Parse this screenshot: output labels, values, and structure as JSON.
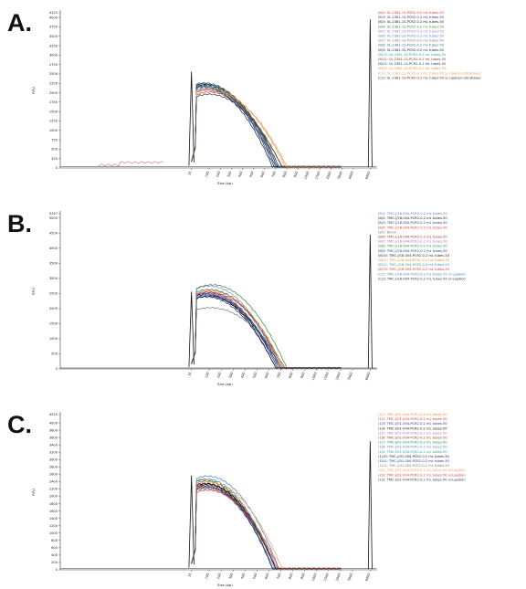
{
  "panels": [
    {
      "letter": "A."
    },
    {
      "letter": "B."
    },
    {
      "letter": "C."
    }
  ],
  "chart_data": [
    {
      "type": "line",
      "panel": "A.",
      "xlabel": "Size (bp)",
      "ylabel": "RFU",
      "ylim": [
        0,
        4125
      ],
      "y_ticks": [
        0,
        250,
        500,
        750,
        1000,
        1250,
        1500,
        1750,
        2000,
        2250,
        2500,
        2750,
        3000,
        3250,
        3500,
        3750,
        4000,
        4125
      ],
      "x_ticks": [
        "35",
        "100",
        "200",
        "300",
        "400",
        "500",
        "600",
        "700",
        "800",
        "900",
        "1000",
        "1500",
        "2000",
        "3000",
        "4000",
        "6000"
      ],
      "grid": false,
      "legend_position": "right",
      "series": [
        {
          "name": "(B)2: 0L-2381-1S-PCR2-0.2 mL tubes-50",
          "color": "#e8312b",
          "peak": 2060,
          "center": 0.47,
          "width": 0.22
        },
        {
          "name": "(B)3: 0L-2381-1S-PCR2-0.2 mL tubes-50",
          "color": "#2c2c9a",
          "peak": 2150,
          "center": 0.455,
          "width": 0.225
        },
        {
          "name": "(B)3: 0L-2381-1S-PCR2-0.2 mL tubes-50",
          "color": "#111111",
          "peak": 2190,
          "center": 0.46,
          "width": 0.23
        },
        {
          "name": "(B)4: 0L-2381-1S-PCR2-0.2 mL tubes-50",
          "color": "#2f8a3f",
          "peak": 2230,
          "center": 0.455,
          "width": 0.23
        },
        {
          "name": "(B)5: 0L-2381-1S-PCR2-0.2 mL tubes-50",
          "color": "#b16cc9",
          "peak": 2040,
          "center": 0.46,
          "width": 0.225
        },
        {
          "name": "(B)6: 0L-2381-1S-PCR2-0.2 mL tubes-50",
          "color": "#4f7fd1",
          "peak": 2090,
          "center": 0.46,
          "width": 0.22
        },
        {
          "name": "(B)7: 0L-2381-1S-PCR2-0.2 mL tubes-50",
          "color": "#7a7a7a",
          "peak": 1990,
          "center": 0.47,
          "width": 0.23
        },
        {
          "name": "(B)8: 0L-2381-1S-PCR2-0.2 mL tubes-50",
          "color": "#3b6d8f",
          "peak": 2210,
          "center": 0.455,
          "width": 0.225
        },
        {
          "name": "(B)9: 0L-2381-1S-PCR2-0.2 mL tubes-50",
          "color": "#1b1b1b",
          "peak": 2130,
          "center": 0.45,
          "width": 0.22
        },
        {
          "name": "(B)10: 0L-2381-1S-PCR2-0.2 mL tubes-50",
          "color": "#26a39b",
          "peak": 2120,
          "center": 0.46,
          "width": 0.23
        },
        {
          "name": "(B)11: 0L-2381-1S-PCR2-0.2 mL tubes-50",
          "color": "#8b3a16",
          "peak": 2170,
          "center": 0.46,
          "width": 0.225
        },
        {
          "name": "(B)12: 0L-2381-1S-PCR2-0.2 mL tubes-50",
          "color": "#0f3f8f",
          "peak": 2200,
          "center": 0.45,
          "width": 0.225
        },
        {
          "name": "(B)13: 0L-2381-1S-PCR2-0.2 mL tubes-50",
          "color": "#f08c2a",
          "peak": 2000,
          "center": 0.48,
          "width": 0.235
        },
        {
          "name": "(C)1: 0L-2381-1S-PCR2-0.2 mL tubes-50 ul-Ligation-UltraPower",
          "color": "#f0a060",
          "peak": 2080,
          "center": 0.47,
          "width": 0.24
        },
        {
          "name": "(C)2: 0L-2381-1S-PCR2-0.2 mL tubes-50 ul-Ligation-UltraPower",
          "color": "#333333",
          "peak": 1930,
          "center": 0.47,
          "width": 0.23
        }
      ]
    },
    {
      "type": "line",
      "panel": "B.",
      "xlabel": "Size (bp)",
      "ylabel": "RFU",
      "ylim": [
        0,
        5147
      ],
      "y_ticks": [
        0,
        500,
        1000,
        1500,
        2000,
        2500,
        3000,
        3500,
        4000,
        4500,
        5000,
        5147
      ],
      "x_ticks": [
        "35",
        "100",
        "200",
        "300",
        "400",
        "500",
        "600",
        "700",
        "800",
        "900",
        "1000",
        "1500",
        "2000",
        "3000",
        "6000"
      ],
      "grid": false,
      "legend_position": "right",
      "series": [
        {
          "name": "(B)1: TMC-J/18-004-PCR2-0.2 mL tubes-50",
          "color": "#4f7fd1",
          "peak": 2420,
          "center": 0.47,
          "width": 0.22
        },
        {
          "name": "(B)2: TMC-J/18-004-PCR2-0.2 mL tubes-50",
          "color": "#111111",
          "peak": 2380,
          "center": 0.465,
          "width": 0.225
        },
        {
          "name": "(B)3: TMC-J/18-004-PCR2-0.2 mL tubes-50",
          "color": "#2c2c9a",
          "peak": 2360,
          "center": 0.46,
          "width": 0.22
        },
        {
          "name": "(B)4: TMC-J/18-004-PCR2-0.2 mL tubes-50",
          "color": "#e8312b",
          "peak": 2500,
          "center": 0.475,
          "width": 0.23
        },
        {
          "name": "(B)5: Blank",
          "color": "#7a7a7a",
          "peak": 2000,
          "center": 0.475,
          "width": 0.235
        },
        {
          "name": "(B)6: TMC-J/18-004-PCR2-0.2 mL tubes-50",
          "color": "#8b3a16",
          "peak": 2600,
          "center": 0.47,
          "width": 0.23
        },
        {
          "name": "(B)7: TMC-J/18-004-PCR2-0.2 mL tubes-50",
          "color": "#b16cc9",
          "peak": 2720,
          "center": 0.47,
          "width": 0.225
        },
        {
          "name": "(B)8: TMC-J/18-004-PCR2-0.2 mL tubes-50",
          "color": "#2f8a3f",
          "peak": 2760,
          "center": 0.48,
          "width": 0.235
        },
        {
          "name": "(B)9: TMC-J/18-004-PCR2-0.2 mL tubes-50",
          "color": "#0f3f8f",
          "peak": 2480,
          "center": 0.465,
          "width": 0.22
        },
        {
          "name": "(B)10: TMC-J/18-004-PCR2-0.2 mL tubes-50",
          "color": "#1b1b1b",
          "peak": 2440,
          "center": 0.46,
          "width": 0.22
        },
        {
          "name": "(B)11: TMC-J/18-004-PCR2-0.2 mL tubes-50",
          "color": "#f08c2a",
          "peak": 2560,
          "center": 0.475,
          "width": 0.23
        },
        {
          "name": "(B)12: TMC-J/18-004-PCR2-0.2 mL tubes-50",
          "color": "#26a39b",
          "peak": 2600,
          "center": 0.47,
          "width": 0.225
        },
        {
          "name": "(B)13: TMC-J/18-004-PCR2-0.2 mL tubes-50",
          "color": "#e8312b",
          "peak": 2520,
          "center": 0.465,
          "width": 0.225
        },
        {
          "name": "(C)2: TMC-J/18-004-PCR2-0.2 mL tubes-50 ul-Ligation",
          "color": "#4f7fd1",
          "peak": 2460,
          "center": 0.47,
          "width": 0.22
        },
        {
          "name": "(C)3: TMC-J/18-004-PCR2-0.2 mL tubes-50 ul-Ligation",
          "color": "#333333",
          "peak": 2380,
          "center": 0.47,
          "width": 0.225
        }
      ]
    },
    {
      "type": "line",
      "panel": "C.",
      "xlabel": "Size (bp)",
      "ylabel": "RFU",
      "ylim": [
        0,
        4225
      ],
      "y_ticks": [
        0,
        200,
        400,
        600,
        800,
        1000,
        1200,
        1400,
        1600,
        1800,
        2000,
        2200,
        2400,
        2600,
        2800,
        3000,
        3200,
        3400,
        3600,
        3800,
        4000,
        4225
      ],
      "x_ticks": [
        "35",
        "100",
        "200",
        "300",
        "400",
        "500",
        "600",
        "700",
        "800",
        "900",
        "1000",
        "1500",
        "2000",
        "3000",
        "6000"
      ],
      "grid": false,
      "legend_position": "right",
      "series": [
        {
          "name": "(1)1: TMC-J/01-004-PCR2-0.2 mL tubes-50",
          "color": "#f08c2a",
          "peak": 2280,
          "center": 0.46,
          "width": 0.22
        },
        {
          "name": "(1)2: TMC-J/01-004-PCR2-0.2 mL tubes-50",
          "color": "#e8312b",
          "peak": 2380,
          "center": 0.46,
          "width": 0.22
        },
        {
          "name": "(1)3: TMC-J/01-004-PCR2-0.2 mL tubes-50",
          "color": "#2c2c9a",
          "peak": 2320,
          "center": 0.455,
          "width": 0.215
        },
        {
          "name": "(1)4: TMC-J/01-004-PCR2-0.2 mL tubes-50",
          "color": "#111111",
          "peak": 2300,
          "center": 0.46,
          "width": 0.22
        },
        {
          "name": "(1)5: TMC-J/01-004-PCR2-0.2 mL tubes-50",
          "color": "#b16cc9",
          "peak": 2200,
          "center": 0.455,
          "width": 0.22
        },
        {
          "name": "(1)6: TMC-J/01-004-PCR2-0.2 mL tubes-50",
          "color": "#8b3a16",
          "peak": 2240,
          "center": 0.46,
          "width": 0.22
        },
        {
          "name": "(1)7: TMC-J/01-004-PCR2-0.2 mL tubes-50",
          "color": "#2f8a3f",
          "peak": 2420,
          "center": 0.455,
          "width": 0.215
        },
        {
          "name": "(1)8: TMC-J/01-004-PCR2-0.2 mL tubes-50",
          "color": "#4f7fd1",
          "peak": 2520,
          "center": 0.465,
          "width": 0.225
        },
        {
          "name": "(1)9: TMC-J/01-004-PCR2-0.2 mL tubes-50",
          "color": "#26a39b",
          "peak": 2440,
          "center": 0.46,
          "width": 0.22
        },
        {
          "name": "(1)10: TMC-J/01-004-PCR2-0.2 mL tubes-50",
          "color": "#1b1b1b",
          "peak": 2320,
          "center": 0.46,
          "width": 0.22
        },
        {
          "name": "(1)11: TMC-J/01-004-PCR2-0.2 mL tubes-50",
          "color": "#0f3f8f",
          "peak": 2260,
          "center": 0.455,
          "width": 0.215
        },
        {
          "name": "(1)12: TMC-J/01-004-PCR2-0.2 mL tubes-50",
          "color": "#7a7a7a",
          "peak": 2180,
          "center": 0.46,
          "width": 0.225
        },
        {
          "name": "(2)1: TMC-J/01-004-PCR2-0.2 mL tubes-50 ul-Ligation",
          "color": "#f0a060",
          "peak": 2360,
          "center": 0.47,
          "width": 0.23
        },
        {
          "name": "(2)2: TMC-J/01-004-PCR2-0.2 mL tubes-50 ul-Ligation",
          "color": "#e8312b",
          "peak": 2140,
          "center": 0.465,
          "width": 0.225
        },
        {
          "name": "(2)3: TMC-J/01-004-PCR2-0.2 mL tubes-50 ul-Ligation",
          "color": "#333333",
          "peak": 2220,
          "center": 0.46,
          "width": 0.22
        }
      ]
    }
  ]
}
